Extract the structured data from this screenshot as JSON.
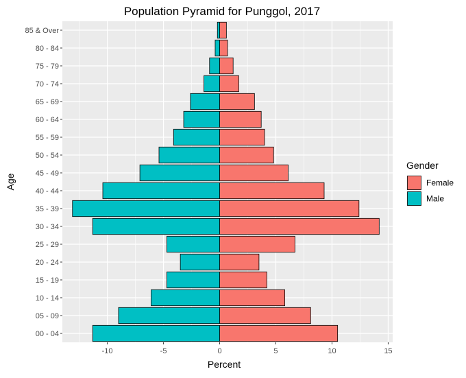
{
  "chart_data": {
    "type": "bar",
    "orientation": "horizontal",
    "title": "Population Pyramid for Punggol, 2017",
    "xlabel": "Percent",
    "ylabel": "Age",
    "xlim": [
      -14,
      15.4
    ],
    "x_ticks": [
      -10,
      -5,
      0,
      5,
      10,
      15
    ],
    "x_tick_labels": [
      "-10",
      "-5",
      "0",
      "5",
      "10",
      "15"
    ],
    "categories": [
      "00 - 04",
      "05 - 09",
      "10 - 14",
      "15 - 19",
      "20 - 24",
      "25 - 29",
      "30 - 34",
      "35 - 39",
      "40 - 44",
      "45 - 49",
      "50 - 54",
      "55 - 59",
      "60 - 64",
      "65 - 69",
      "70 - 74",
      "75 - 79",
      "80 - 84",
      "85 & Over"
    ],
    "series": [
      {
        "name": "Female",
        "color": "#F8766D",
        "values": [
          10.5,
          8.1,
          5.8,
          4.2,
          3.5,
          6.7,
          14.2,
          12.4,
          9.3,
          6.1,
          4.8,
          4.0,
          3.7,
          3.1,
          1.7,
          1.2,
          0.7,
          0.6
        ]
      },
      {
        "name": "Male",
        "color": "#00BFC4",
        "values": [
          -11.3,
          -9.0,
          -6.1,
          -4.7,
          -3.5,
          -4.7,
          -11.3,
          -13.1,
          -10.4,
          -7.1,
          -5.4,
          -4.1,
          -3.2,
          -2.6,
          -1.4,
          -0.9,
          -0.4,
          -0.2
        ]
      }
    ],
    "legend": {
      "title": "Gender",
      "position": "right",
      "items": [
        "Female",
        "Male"
      ]
    },
    "grid": true,
    "panel_background": "#EBEBEB",
    "grid_color": "#FFFFFF",
    "bar_outline": "#000000"
  }
}
